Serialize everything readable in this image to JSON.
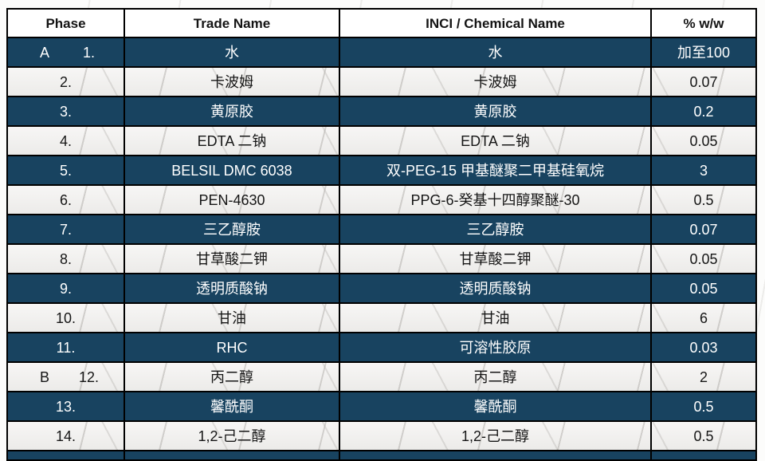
{
  "table": {
    "headers": [
      "Phase",
      "Trade Name",
      "INCI / Chemical Name",
      "% w/w"
    ],
    "rows": [
      {
        "phase": "A",
        "num": "1.",
        "trade": "水",
        "inci": "水",
        "pct": "加至100",
        "dark": true
      },
      {
        "phase": "",
        "num": "2.",
        "trade": "卡波姆",
        "inci": "卡波姆",
        "pct": "0.07",
        "dark": false
      },
      {
        "phase": "",
        "num": "3.",
        "trade": "黄原胶",
        "inci": "黄原胶",
        "pct": "0.2",
        "dark": true
      },
      {
        "phase": "",
        "num": "4.",
        "trade": "EDTA 二钠",
        "inci": "EDTA 二钠",
        "pct": "0.05",
        "dark": false
      },
      {
        "phase": "",
        "num": "5.",
        "trade": "BELSIL DMC 6038",
        "inci": "双-PEG-15 甲基醚聚二甲基硅氧烷",
        "pct": "3",
        "dark": true
      },
      {
        "phase": "",
        "num": "6.",
        "trade": "PEN-4630",
        "inci": "PPG-6-癸基十四醇聚醚-30",
        "pct": "0.5",
        "dark": false
      },
      {
        "phase": "",
        "num": "7.",
        "trade": "三乙醇胺",
        "inci": "三乙醇胺",
        "pct": "0.07",
        "dark": true
      },
      {
        "phase": "",
        "num": "8.",
        "trade": "甘草酸二钾",
        "inci": "甘草酸二钾",
        "pct": "0.05",
        "dark": false
      },
      {
        "phase": "",
        "num": "9.",
        "trade": "透明质酸钠",
        "inci": "透明质酸钠",
        "pct": "0.05",
        "dark": true
      },
      {
        "phase": "",
        "num": "10.",
        "trade": "甘油",
        "inci": "甘油",
        "pct": "6",
        "dark": false
      },
      {
        "phase": "",
        "num": "11.",
        "trade": "RHC",
        "inci": "可溶性胶原",
        "pct": "0.03",
        "dark": true
      },
      {
        "phase": "B",
        "num": "12.",
        "trade": "丙二醇",
        "inci": "丙二醇",
        "pct": "2",
        "dark": false
      },
      {
        "phase": "",
        "num": "13.",
        "trade": "馨酰酮",
        "inci": "馨酰酮",
        "pct": "0.5",
        "dark": true
      },
      {
        "phase": "",
        "num": "14.",
        "trade": "1,2-己二醇",
        "inci": "1,2-己二醇",
        "pct": "0.5",
        "dark": false
      },
      {
        "phase": "",
        "num": "",
        "trade": "",
        "inci": "",
        "pct": "",
        "dark": true,
        "partial": true
      }
    ]
  },
  "colors": {
    "dark_row_bg": "#184360",
    "dark_row_text": "#ffffff",
    "light_row_bg": "#f2f1ef",
    "light_row_text": "#161616",
    "header_bg": "#ffffff",
    "border": "#000000"
  }
}
